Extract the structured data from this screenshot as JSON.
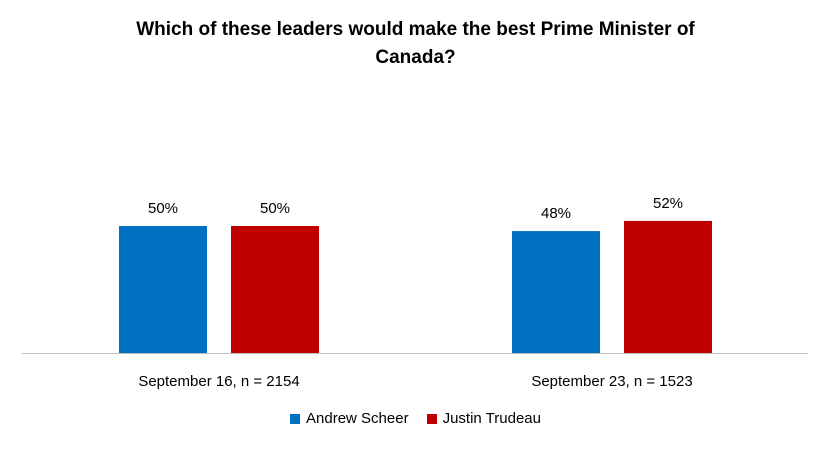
{
  "chart_data": {
    "type": "bar",
    "title_lines": [
      "Which of these leaders would make the best Prime Minister of",
      "Canada?"
    ],
    "categories": [
      "September 16, n = 2154",
      "September 23, n = 1523"
    ],
    "series": [
      {
        "name": "Andrew Scheer",
        "color": "#0070C0",
        "values": [
          50,
          48
        ],
        "labels": [
          "50%",
          "48%"
        ]
      },
      {
        "name": "Justin Trudeau",
        "color": "#C00000",
        "values": [
          50,
          52
        ],
        "labels": [
          "50%",
          "52%"
        ]
      }
    ],
    "ylim": [
      0,
      100
    ],
    "grid": false,
    "legend_position": "bottom"
  }
}
